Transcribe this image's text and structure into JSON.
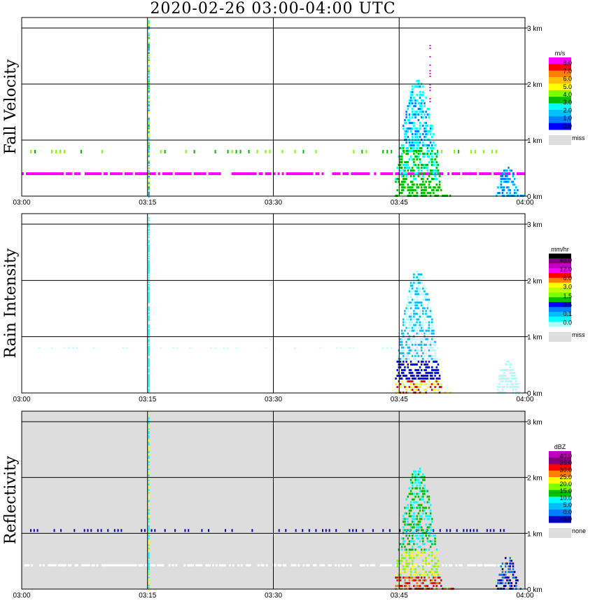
{
  "title": "2020-02-26  03:00-04:00 UTC",
  "time_ticks": [
    "03:00",
    "03:15",
    "03:30",
    "03:45",
    "04:00"
  ],
  "height_ticks": [
    "0 km",
    "1 km",
    "2 km",
    "3 km"
  ],
  "chart_data": [
    {
      "type": "heatmap",
      "title": "Fall Velocity",
      "xlabel": "",
      "ylabel": "Fall Velocity",
      "x_range": [
        "03:00",
        "04:00"
      ],
      "y_range_km": [
        0,
        3.2
      ],
      "grid": true,
      "colorbar": {
        "unit": "m/s",
        "labels": [
          "8.0",
          "7.0",
          "6.0",
          "5.0",
          "4.0",
          "3.0",
          "2.0",
          "1.0",
          "0.0"
        ],
        "colors": [
          "#ff00ff",
          "#ff0000",
          "#ff7f00",
          "#ffbf00",
          "#ffff00",
          "#7fff00",
          "#00bf00",
          "#00ffff",
          "#00bfff",
          "#0080ff",
          "#0000ff"
        ],
        "missing_label": "miss",
        "missing_color": "#dddddd"
      },
      "features": [
        {
          "desc": "layer",
          "height_km": 0.4,
          "from": "03:00",
          "to": "04:00",
          "color": "#ff00ff"
        },
        {
          "desc": "layer",
          "height_km": 0.8,
          "from": "03:00",
          "to": "04:00",
          "color": "#7fff00"
        },
        {
          "desc": "convective cell",
          "from": "03:46",
          "to": "03:53",
          "top_km": 2.7
        }
      ]
    },
    {
      "type": "heatmap",
      "title": "Rain Intensity",
      "xlabel": "",
      "ylabel": "Rain Intensity",
      "x_range": [
        "03:00",
        "04:00"
      ],
      "y_range_km": [
        0,
        3.2
      ],
      "grid": true,
      "colorbar": {
        "unit": "mm/hr",
        "labels": [
          "48.0",
          "12.0",
          "6.0",
          "3.0",
          "1.5",
          "0.5",
          "0.1",
          "0.0"
        ],
        "colors": [
          "#000000",
          "#7f007f",
          "#bf00bf",
          "#ff00ff",
          "#ff0000",
          "#ff7f00",
          "#ffff00",
          "#bfff00",
          "#7fff00",
          "#00bf00",
          "#0000ff",
          "#0080ff",
          "#00bfff",
          "#00ffff",
          "#aaffff"
        ],
        "missing_label": "miss",
        "missing_color": "#dddddd"
      }
    },
    {
      "type": "heatmap",
      "title": "Reflectivity",
      "xlabel": "",
      "ylabel": "Reflectivity",
      "x_range": [
        "03:00",
        "04:00"
      ],
      "y_range_km": [
        0,
        3.2
      ],
      "grid": true,
      "background": "#dddddd",
      "colorbar": {
        "unit": "dBZ",
        "labels": [
          "40.0",
          "35.0",
          "30.0",
          "25.0",
          "20.0",
          "15.0",
          "10.0",
          "5.0",
          "0.0",
          "−5.0"
        ],
        "colors": [
          "#bf00bf",
          "#7f007f",
          "#ff0000",
          "#ff7f00",
          "#ffff00",
          "#7fff00",
          "#00bf00",
          "#00ffff",
          "#00bfff",
          "#0080ff",
          "#0000bf"
        ],
        "missing_label": "none",
        "missing_color": "#dddddd"
      }
    }
  ]
}
